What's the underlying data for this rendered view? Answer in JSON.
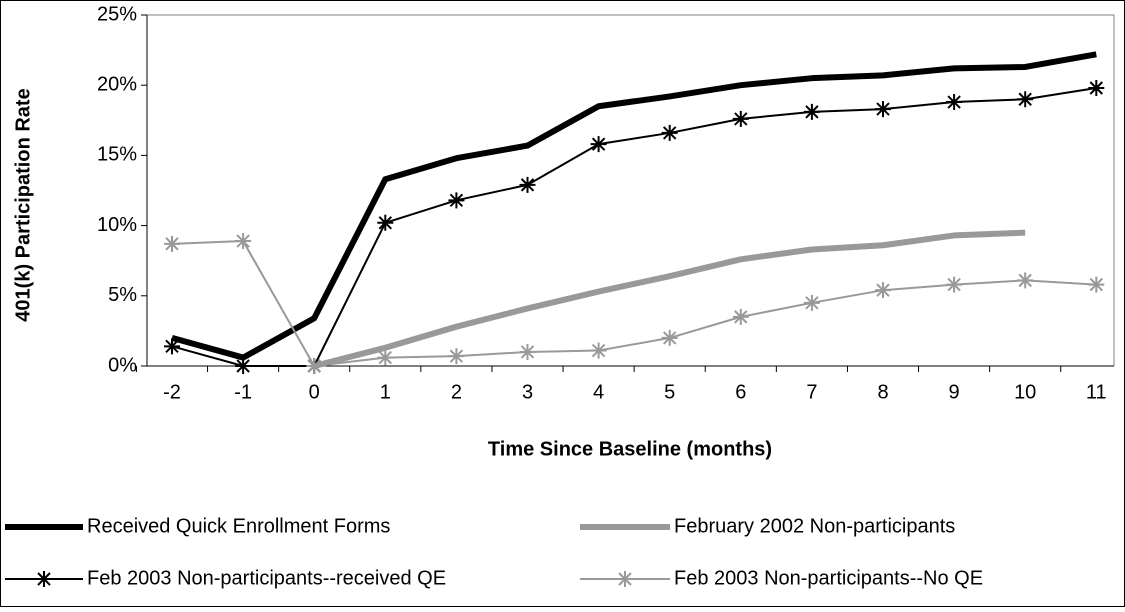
{
  "chart_data": {
    "type": "line",
    "x_label": "Time Since Baseline (months)",
    "y_label": "401(k) Participation Rate",
    "categories": [
      "-2",
      "-1",
      "0",
      "1",
      "2",
      "3",
      "4",
      "5",
      "6",
      "7",
      "8",
      "9",
      "10",
      "11"
    ],
    "ylim": [
      0,
      25
    ],
    "yticks": [
      {
        "value": 0,
        "label": "0%"
      },
      {
        "value": 5,
        "label": "5%"
      },
      {
        "value": 10,
        "label": "10%"
      },
      {
        "value": 15,
        "label": "15%"
      },
      {
        "value": 20,
        "label": "20%"
      },
      {
        "value": 25,
        "label": "25%"
      }
    ],
    "series": [
      {
        "name": "Received Quick Enrollment Forms",
        "color": "#000000",
        "marker": null,
        "values": [
          2.0,
          0.6,
          3.4,
          13.3,
          14.8,
          15.7,
          18.5,
          19.2,
          20.0,
          20.5,
          20.7,
          21.2,
          21.3,
          22.2
        ]
      },
      {
        "name": "February 2002 Non-participants",
        "color": "#999999",
        "marker": null,
        "values": [
          null,
          null,
          0,
          1.3,
          2.8,
          4.1,
          5.3,
          6.4,
          7.6,
          8.3,
          8.6,
          9.3,
          9.5,
          null
        ]
      },
      {
        "name": "Feb 2003 Non-participants--received QE",
        "color": "#000000",
        "marker": "asterisk",
        "values": [
          1.4,
          0,
          0,
          10.2,
          11.8,
          12.9,
          15.8,
          16.6,
          17.6,
          18.1,
          18.3,
          18.8,
          19.0,
          19.8
        ]
      },
      {
        "name": "Feb 2003 Non-participants--No QE",
        "color": "#999999",
        "marker": "asterisk",
        "values": [
          8.7,
          8.9,
          0,
          0.6,
          0.7,
          1.0,
          1.1,
          2.0,
          3.5,
          4.5,
          5.4,
          5.8,
          6.1,
          5.8
        ]
      }
    ]
  }
}
